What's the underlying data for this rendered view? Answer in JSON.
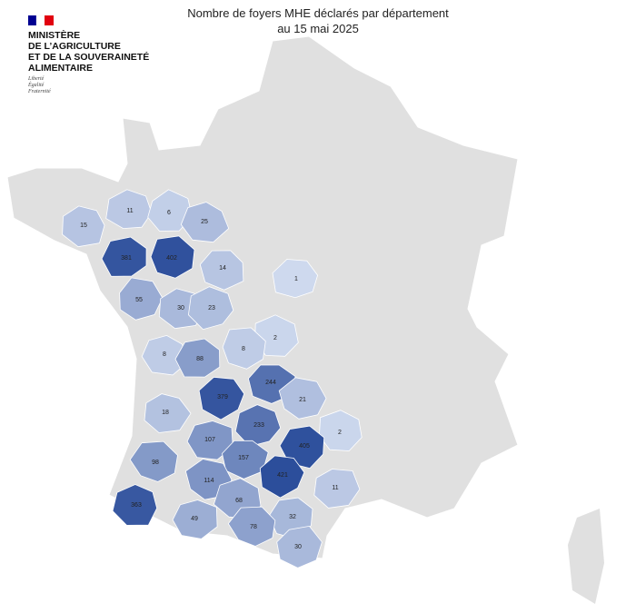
{
  "header": {
    "title": "Nombre de foyers MHE déclarés par département",
    "subtitle": "au 15 mai 2025"
  },
  "logo": {
    "lines": [
      "MINISTÈRE",
      "DE L’AGRICULTURE",
      "ET DE LA SOUVERAINETÉ",
      "ALIMENTAIRE"
    ],
    "motto": [
      "Liberté",
      "Égalité",
      "Fraternité"
    ]
  },
  "departments": [
    {
      "value": 15
    },
    {
      "value": 11
    },
    {
      "value": 6
    },
    {
      "value": 25
    },
    {
      "value": 381
    },
    {
      "value": 402
    },
    {
      "value": 14
    },
    {
      "value": 1
    },
    {
      "value": 55
    },
    {
      "value": 30
    },
    {
      "value": 23
    },
    {
      "value": 2
    },
    {
      "value": 8
    },
    {
      "value": 88
    },
    {
      "value": 8
    },
    {
      "value": 244
    },
    {
      "value": 379
    },
    {
      "value": 21
    },
    {
      "value": 18
    },
    {
      "value": 233
    },
    {
      "value": 2
    },
    {
      "value": 107
    },
    {
      "value": 405
    },
    {
      "value": 98
    },
    {
      "value": 157
    },
    {
      "value": 421
    },
    {
      "value": 114
    },
    {
      "value": 11
    },
    {
      "value": 363
    },
    {
      "value": 68
    },
    {
      "value": 49
    },
    {
      "value": 32
    },
    {
      "value": 78
    },
    {
      "value": 30
    }
  ]
}
